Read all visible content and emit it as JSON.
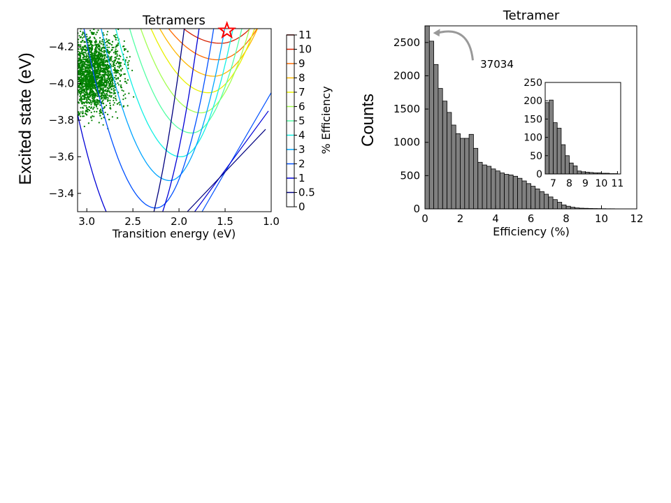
{
  "chart_data": [
    {
      "type": "contour",
      "title": "Tetramers",
      "xlabel": "Transition energy (eV)",
      "ylabel": "Excited state (eV)",
      "xlim": [
        3.1,
        1.0
      ],
      "ylim": [
        -3.3,
        -4.3
      ],
      "x_ticks": [
        "3.0",
        "2.5",
        "2.0",
        "1.5",
        "1.0"
      ],
      "y_ticks": [
        "−4.2",
        "−4.0",
        "−3.8",
        "−3.6",
        "−3.4"
      ],
      "colorbar": {
        "label": "% Efficiency",
        "levels": [
          "11",
          "10",
          "9",
          "8",
          "7",
          "6",
          "5",
          "4",
          "3",
          "2",
          "1",
          "0.5",
          "0"
        ],
        "colors": [
          "#7f0000",
          "#d62000",
          "#ff6a00",
          "#ffb800",
          "#e8f000",
          "#a4ff53",
          "#53ffa4",
          "#13f0e4",
          "#00a4ff",
          "#0050ff",
          "#0000d6",
          "#00007f",
          "#000050"
        ]
      },
      "contour_levels": [
        10,
        9,
        8,
        7,
        6,
        5,
        4,
        3,
        2,
        1,
        0.5
      ],
      "optimum_marker": {
        "x": 1.48,
        "y": -4.28,
        "symbol": "star",
        "color": "#ff0000"
      },
      "scatter_color": "#008000"
    },
    {
      "type": "bar",
      "title": "Tetramer",
      "xlabel": "Efficiency (%)",
      "ylabel": "Counts",
      "xlim": [
        0,
        12
      ],
      "ylim": [
        0,
        2750
      ],
      "x_ticks": [
        "0",
        "2",
        "4",
        "6",
        "8",
        "10",
        "12"
      ],
      "y_ticks": [
        "0",
        "500",
        "1000",
        "1500",
        "2000",
        "2500"
      ],
      "bin_width": 0.25,
      "values": [
        2750,
        2520,
        2170,
        1810,
        1620,
        1450,
        1260,
        1130,
        1060,
        1060,
        1120,
        910,
        700,
        660,
        640,
        600,
        570,
        540,
        520,
        510,
        490,
        460,
        420,
        380,
        340,
        300,
        260,
        220,
        180,
        140,
        100,
        60,
        40,
        25,
        15,
        10,
        8,
        6,
        5,
        4,
        3,
        2,
        2,
        1
      ],
      "bar_color": "#808080",
      "annotation": {
        "text": "37034",
        "x": 2.95,
        "y": 2180,
        "arrow_to_x": 0.3,
        "arrow_to_y": 2600
      },
      "inset": {
        "type": "bar",
        "xlim": [
          6.5,
          11.2
        ],
        "ylim": [
          0,
          250
        ],
        "x_ticks": [
          "7",
          "8",
          "9",
          "10",
          "11"
        ],
        "y_ticks": [
          "0",
          "50",
          "100",
          "150",
          "200",
          "250"
        ],
        "bin_width": 0.25,
        "values": [
          195,
          202,
          140,
          125,
          80,
          50,
          30,
          22,
          8,
          6,
          5,
          4,
          3,
          3,
          2,
          2,
          1,
          1
        ]
      }
    }
  ]
}
